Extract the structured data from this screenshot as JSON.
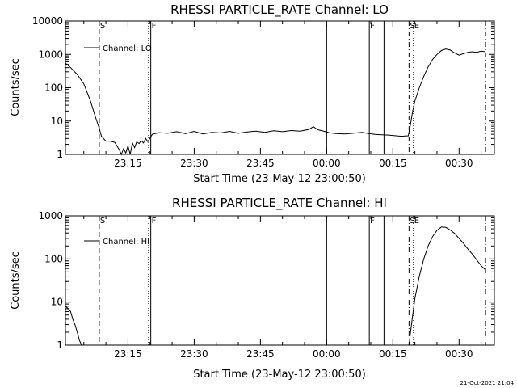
{
  "footer": {
    "timestamp": "21-Oct-2021 21:04"
  },
  "chart_data": [
    {
      "type": "line",
      "title": "RHESSI PARTICLE_RATE Channel: LO",
      "xlabel": "Start Time (23-May-12 23:00:50)",
      "ylabel": "Counts/sec",
      "y_scale": "log",
      "ylim": [
        1,
        10000
      ],
      "y_tick_labels": [
        "1",
        "10",
        "100",
        "1000",
        "10000"
      ],
      "xlim": [
        "23:00:50",
        "00:38:00"
      ],
      "x_tick_labels": [
        "23:15",
        "23:30",
        "23:45",
        "00:00",
        "00:15",
        "00:30"
      ],
      "legend": {
        "label": "Channel: LO",
        "placement": "top-left"
      },
      "series": [
        {
          "name": "Channel: LO",
          "x": [
            "23:00:50",
            "23:02:00",
            "23:03:30",
            "23:05:00",
            "23:06:30",
            "23:07:30",
            "23:08:30",
            "23:09:00",
            "23:10:00",
            "23:11:00",
            "23:12:00",
            "23:13:00",
            "23:13:30",
            "23:14:00",
            "23:14:30",
            "23:15:00",
            "23:15:30",
            "23:16:00",
            "23:16:30",
            "23:17:00",
            "23:17:30",
            "23:18:00",
            "23:18:30",
            "23:19:00",
            "23:19:30",
            "23:20:30",
            "23:22:00",
            "23:24:00",
            "23:26:00",
            "23:28:00",
            "23:30:00",
            "23:32:00",
            "23:34:00",
            "23:36:00",
            "23:38:00",
            "23:40:00",
            "23:42:00",
            "23:44:00",
            "23:46:00",
            "23:48:00",
            "23:50:00",
            "23:52:00",
            "23:54:00",
            "23:56:00",
            "23:57:00",
            "23:58:00",
            "23:59:30",
            "00:00:30",
            "00:02:00",
            "00:04:00",
            "00:06:00",
            "00:08:00",
            "00:09:30",
            "00:11:00",
            "00:12:00",
            "00:14:00",
            "00:16:00",
            "00:17:00",
            "00:18:00",
            "00:18:30",
            "00:19:00",
            "00:19:30",
            "00:20:00",
            "00:21:00",
            "00:22:00",
            "00:23:00",
            "00:24:00",
            "00:25:00",
            "00:26:00",
            "00:27:00",
            "00:28:00",
            "00:29:00",
            "00:30:00",
            "00:31:00",
            "00:32:00",
            "00:33:00",
            "00:34:00",
            "00:35:00",
            "00:36:00"
          ],
          "values": [
            550,
            400,
            250,
            130,
            40,
            15,
            6,
            3.5,
            2.5,
            2.5,
            2.3,
            1.4,
            1.0,
            1.5,
            1.1,
            1.8,
            1.0,
            2.2,
            1.6,
            2.4,
            2.1,
            2.6,
            2.2,
            3.0,
            2.4,
            4.0,
            4.5,
            4.3,
            4.8,
            4.2,
            4.9,
            4.1,
            4.6,
            4.4,
            4.9,
            4.3,
            4.7,
            5.0,
            4.6,
            5.1,
            4.8,
            5.2,
            5.0,
            5.6,
            6.8,
            5.5,
            4.9,
            4.5,
            4.2,
            4.1,
            4.3,
            4.6,
            4.2,
            4.0,
            3.9,
            3.8,
            3.6,
            3.5,
            3.6,
            3.6,
            8,
            20,
            40,
            100,
            220,
            420,
            700,
            1000,
            1300,
            1450,
            1350,
            1100,
            950,
            1050,
            1150,
            1200,
            1150,
            1250,
            1200
          ]
        }
      ],
      "vertical_markers": [
        {
          "x": "23:08:30",
          "style": "dashed",
          "label": "S"
        },
        {
          "x": "23:19:40",
          "style": "dotted",
          "label": ""
        },
        {
          "x": "23:20:10",
          "style": "solid",
          "label": "F"
        },
        {
          "x": "00:00:00",
          "style": "solid",
          "label": ""
        },
        {
          "x": "00:09:40",
          "style": "solid",
          "label": "F"
        },
        {
          "x": "00:13:00",
          "style": "solid",
          "label": ""
        },
        {
          "x": "00:18:40",
          "style": "dash-dot",
          "label": "S"
        },
        {
          "x": "00:19:40",
          "style": "dotted",
          "label": "E"
        },
        {
          "x": "00:36:00",
          "style": "dash-dot",
          "label": ""
        }
      ]
    },
    {
      "type": "line",
      "title": "RHESSI PARTICLE_RATE Channel: HI",
      "xlabel": "Start Time (23-May-12 23:00:50)",
      "ylabel": "Counts/sec",
      "y_scale": "log",
      "ylim": [
        1,
        1000
      ],
      "y_tick_labels": [
        "1",
        "10",
        "100",
        "1000"
      ],
      "xlim": [
        "23:00:50",
        "00:38:00"
      ],
      "x_tick_labels": [
        "23:15",
        "23:30",
        "23:45",
        "00:00",
        "00:15",
        "00:30"
      ],
      "legend": {
        "label": "Channel: HI",
        "placement": "top-left"
      },
      "series": [
        {
          "name": "Channel: HI",
          "x": [
            "23:00:50",
            "23:01:30",
            "23:02:00",
            "23:02:30",
            "23:03:00",
            "23:03:30",
            "23:04:00",
            "23:04:30",
            "00:18:40",
            "00:19:00",
            "00:19:30",
            "00:20:00",
            "00:21:00",
            "00:22:00",
            "00:23:00",
            "00:24:00",
            "00:25:00",
            "00:26:00",
            "00:27:00",
            "00:28:00",
            "00:29:00",
            "00:30:00",
            "00:31:00",
            "00:32:00",
            "00:33:00",
            "00:34:00",
            "00:35:00",
            "00:36:00"
          ],
          "values": [
            8,
            7,
            6,
            4,
            3,
            2,
            1.3,
            1.0,
            1.0,
            2,
            5,
            12,
            40,
            100,
            200,
            330,
            460,
            550,
            540,
            470,
            390,
            300,
            230,
            170,
            130,
            95,
            70,
            55
          ]
        }
      ],
      "vertical_markers": [
        {
          "x": "23:08:30",
          "style": "dashed",
          "label": "S"
        },
        {
          "x": "23:19:40",
          "style": "dotted",
          "label": ""
        },
        {
          "x": "23:20:10",
          "style": "solid",
          "label": "F"
        },
        {
          "x": "00:00:00",
          "style": "solid",
          "label": ""
        },
        {
          "x": "00:09:40",
          "style": "solid",
          "label": "F"
        },
        {
          "x": "00:13:00",
          "style": "solid",
          "label": ""
        },
        {
          "x": "00:18:40",
          "style": "dash-dot",
          "label": "S"
        },
        {
          "x": "00:19:40",
          "style": "dotted",
          "label": "E"
        },
        {
          "x": "00:36:00",
          "style": "dash-dot",
          "label": ""
        }
      ]
    }
  ]
}
